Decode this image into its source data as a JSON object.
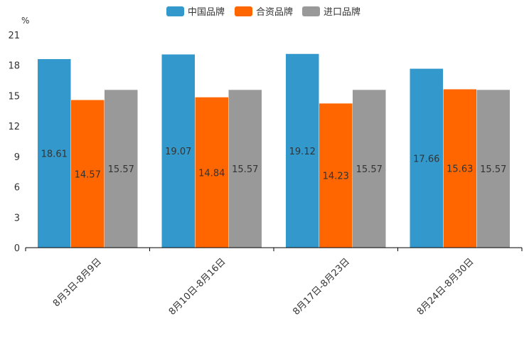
{
  "chart_data": {
    "type": "bar",
    "title": "",
    "unit": "%",
    "categories": [
      "8月3日-8月9日",
      "8月10日-8月16日",
      "8月17日-8月23日",
      "8月24日-8月30日"
    ],
    "series": [
      {
        "name": "中国品牌",
        "color": "#3399cc",
        "values": [
          18.61,
          19.07,
          19.12,
          17.66
        ]
      },
      {
        "name": "合资品牌",
        "color": "#ff6600",
        "values": [
          14.57,
          14.84,
          14.23,
          15.63
        ]
      },
      {
        "name": "进口品牌",
        "color": "#999999",
        "values": [
          15.57,
          15.57,
          15.57,
          15.57
        ]
      }
    ],
    "yticks": [
      0,
      3,
      6,
      9,
      12,
      15,
      18,
      21
    ],
    "ylim": [
      0,
      21
    ],
    "legend_position": "top-center",
    "grid": false
  }
}
